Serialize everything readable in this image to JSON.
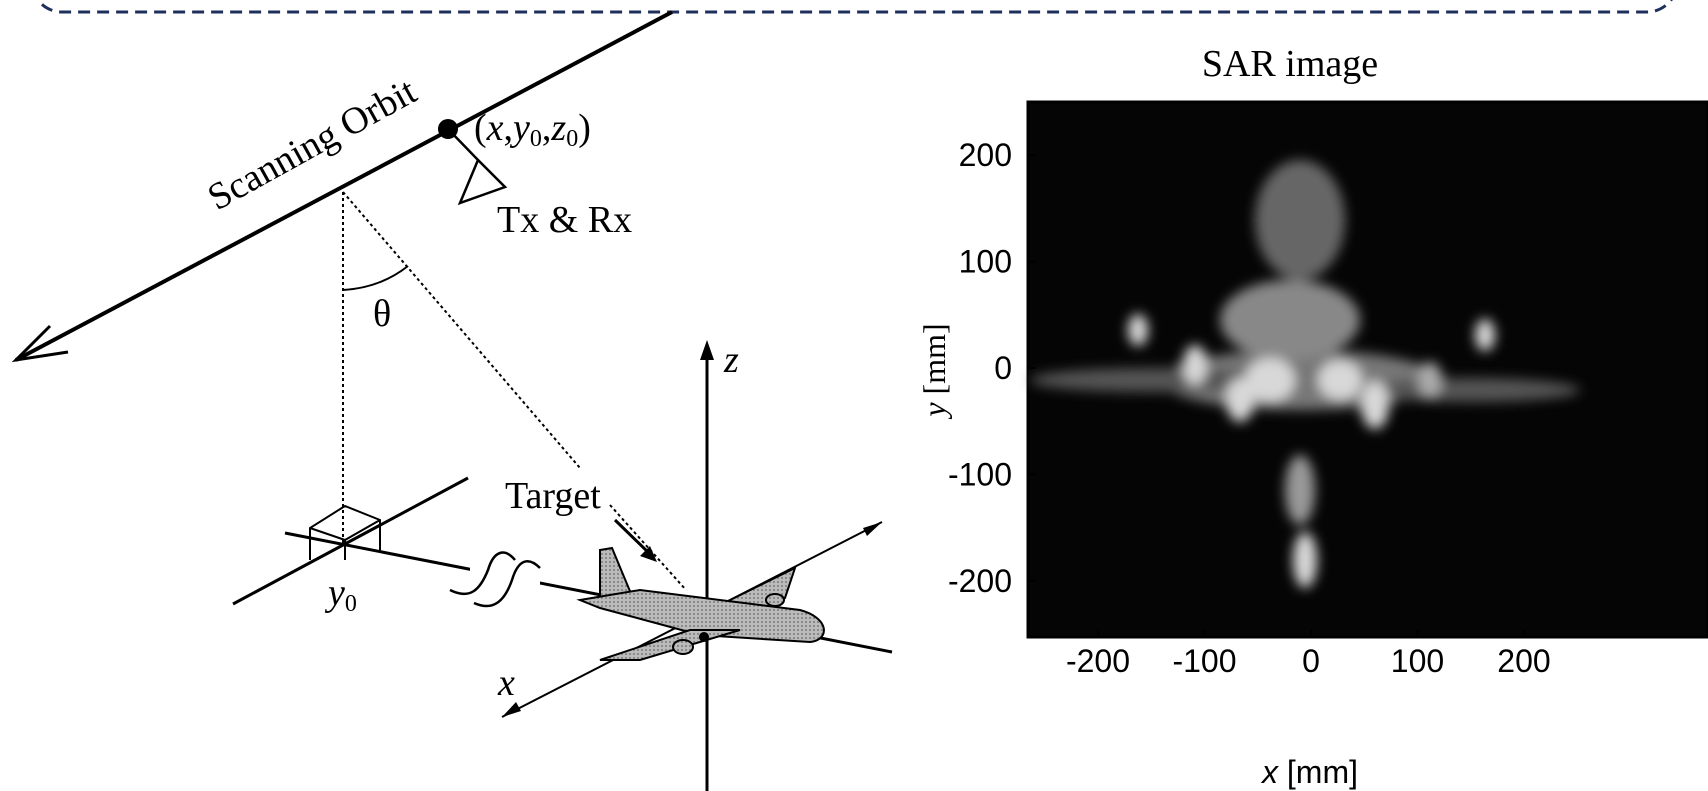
{
  "diagram": {
    "orbit_label": "Scanning Orbit",
    "orbit_point": [
      "(",
      "x",
      ",",
      "y",
      "0",
      ",",
      "z",
      "0",
      ")"
    ],
    "antenna_label": "Tx & Rx",
    "angle_label": "θ",
    "z_axis_label": "z",
    "target_label": "Target",
    "ground_label": [
      "y",
      "0"
    ],
    "x_axis_label": "x"
  },
  "sar_image": {
    "title": "SAR image",
    "x_label": [
      "x",
      " [mm]"
    ],
    "y_label": [
      "y",
      " [mm]"
    ],
    "xticks": [
      -200,
      -100,
      0,
      100,
      200
    ],
    "yticks": [
      200,
      100,
      0,
      -100,
      -200
    ]
  }
}
